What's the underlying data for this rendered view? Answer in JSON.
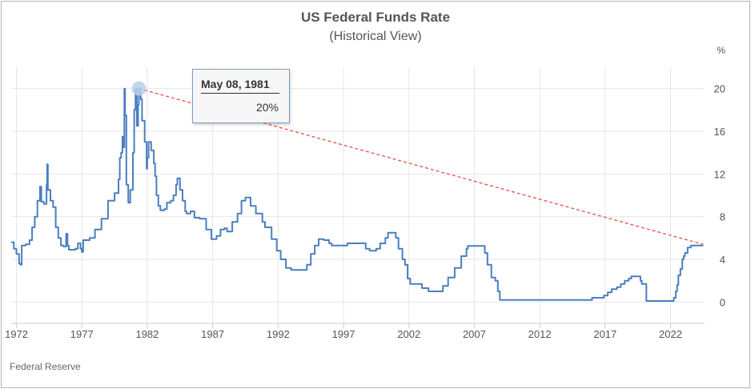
{
  "source": "Federal Reserve",
  "tooltip": {
    "date": "May 08, 1981",
    "value": "20%"
  },
  "colors": {
    "series": "#4a7fc1",
    "trend": "#e8413d",
    "grid": "#e6e6e6",
    "marker": "#b8cfe9"
  },
  "chart_data": {
    "type": "line",
    "title": "US Federal Funds Rate",
    "subtitle": "(Historical View)",
    "ylabel": "%",
    "xlim": [
      1971.6,
      2024.6
    ],
    "ylim": [
      -2,
      22
    ],
    "x_ticks": [
      1972,
      1977,
      1982,
      1987,
      1992,
      1997,
      2002,
      2007,
      2012,
      2017,
      2022
    ],
    "x_tick_labels": [
      "1972",
      "1977",
      "1982",
      "1987",
      "1992",
      "1997",
      "2002",
      "2007",
      "2012",
      "2017",
      "2022"
    ],
    "y_ticks": [
      0,
      4,
      8,
      12,
      16,
      20
    ],
    "y_tick_labels": [
      "0",
      "4",
      "8",
      "12",
      "16",
      "20"
    ],
    "grid": true,
    "series": [
      {
        "values": [
          [
            1971.6,
            5.6
          ],
          [
            1971.8,
            5.0
          ],
          [
            1972.0,
            4.5
          ],
          [
            1972.2,
            3.6
          ],
          [
            1972.3,
            3.5
          ],
          [
            1972.4,
            5.3
          ],
          [
            1972.7,
            5.4
          ],
          [
            1973.0,
            5.8
          ],
          [
            1973.2,
            7.0
          ],
          [
            1973.4,
            8.0
          ],
          [
            1973.6,
            9.5
          ],
          [
            1973.8,
            10.8
          ],
          [
            1973.9,
            9.4
          ],
          [
            1974.1,
            9.2
          ],
          [
            1974.3,
            11.0
          ],
          [
            1974.35,
            12.9
          ],
          [
            1974.4,
            10.5
          ],
          [
            1974.6,
            9.5
          ],
          [
            1974.8,
            8.9
          ],
          [
            1975.0,
            7.0
          ],
          [
            1975.2,
            6.0
          ],
          [
            1975.4,
            5.3
          ],
          [
            1975.6,
            5.2
          ],
          [
            1975.8,
            6.4
          ],
          [
            1975.9,
            5.3
          ],
          [
            1976.0,
            4.9
          ],
          [
            1976.5,
            5.0
          ],
          [
            1976.7,
            5.5
          ],
          [
            1976.9,
            5.0
          ],
          [
            1977.0,
            4.7
          ],
          [
            1977.1,
            5.8
          ],
          [
            1977.6,
            6.0
          ],
          [
            1978.0,
            6.8
          ],
          [
            1978.5,
            7.8
          ],
          [
            1979.0,
            9.5
          ],
          [
            1979.5,
            10.2
          ],
          [
            1979.8,
            11.5
          ],
          [
            1979.9,
            13.5
          ],
          [
            1980.0,
            14.0
          ],
          [
            1980.1,
            15.5
          ],
          [
            1980.2,
            14.5
          ],
          [
            1980.25,
            20.0
          ],
          [
            1980.3,
            17.5
          ],
          [
            1980.4,
            11.0
          ],
          [
            1980.55,
            9.3
          ],
          [
            1980.7,
            10.5
          ],
          [
            1980.9,
            14.0
          ],
          [
            1981.0,
            18.0
          ],
          [
            1981.1,
            20.0
          ],
          [
            1981.2,
            16.5
          ],
          [
            1981.3,
            18.5
          ],
          [
            1981.36,
            20.0
          ],
          [
            1981.5,
            19.0
          ],
          [
            1981.6,
            17.0
          ],
          [
            1981.8,
            15.0
          ],
          [
            1981.95,
            12.5
          ],
          [
            1982.0,
            13.5
          ],
          [
            1982.1,
            15.0
          ],
          [
            1982.3,
            14.2
          ],
          [
            1982.5,
            13.0
          ],
          [
            1982.6,
            11.8
          ],
          [
            1982.7,
            10.0
          ],
          [
            1982.85,
            9.0
          ],
          [
            1983.0,
            8.6
          ],
          [
            1983.3,
            8.7
          ],
          [
            1983.5,
            9.3
          ],
          [
            1983.8,
            9.5
          ],
          [
            1984.0,
            10.0
          ],
          [
            1984.2,
            11.0
          ],
          [
            1984.3,
            11.6
          ],
          [
            1984.5,
            10.5
          ],
          [
            1984.7,
            9.5
          ],
          [
            1984.9,
            8.5
          ],
          [
            1985.0,
            8.3
          ],
          [
            1985.3,
            8.5
          ],
          [
            1985.6,
            7.9
          ],
          [
            1986.0,
            7.8
          ],
          [
            1986.5,
            6.8
          ],
          [
            1986.9,
            5.9
          ],
          [
            1987.3,
            6.2
          ],
          [
            1987.6,
            6.8
          ],
          [
            1987.9,
            6.9
          ],
          [
            1988.1,
            6.6
          ],
          [
            1988.5,
            7.5
          ],
          [
            1988.9,
            8.3
          ],
          [
            1989.2,
            9.5
          ],
          [
            1989.5,
            9.8
          ],
          [
            1989.9,
            9.0
          ],
          [
            1990.3,
            8.3
          ],
          [
            1990.8,
            7.5
          ],
          [
            1991.0,
            7.0
          ],
          [
            1991.5,
            5.9
          ],
          [
            1991.9,
            4.8
          ],
          [
            1992.2,
            4.0
          ],
          [
            1992.6,
            3.2
          ],
          [
            1993.0,
            3.0
          ],
          [
            1993.9,
            3.0
          ],
          [
            1994.2,
            3.5
          ],
          [
            1994.5,
            4.5
          ],
          [
            1994.8,
            5.3
          ],
          [
            1995.1,
            5.9
          ],
          [
            1995.5,
            5.8
          ],
          [
            1995.9,
            5.5
          ],
          [
            1996.1,
            5.3
          ],
          [
            1997.2,
            5.3
          ],
          [
            1997.3,
            5.5
          ],
          [
            1998.3,
            5.5
          ],
          [
            1998.7,
            5.0
          ],
          [
            1999.0,
            4.8
          ],
          [
            1999.5,
            5.0
          ],
          [
            1999.8,
            5.5
          ],
          [
            2000.2,
            6.0
          ],
          [
            2000.4,
            6.5
          ],
          [
            2000.9,
            6.5
          ],
          [
            2001.0,
            6.0
          ],
          [
            2001.2,
            5.0
          ],
          [
            2001.5,
            4.0
          ],
          [
            2001.7,
            3.5
          ],
          [
            2001.9,
            2.2
          ],
          [
            2002.1,
            1.7
          ],
          [
            2002.8,
            1.7
          ],
          [
            2003.0,
            1.3
          ],
          [
            2003.5,
            1.0
          ],
          [
            2004.3,
            1.0
          ],
          [
            2004.6,
            1.5
          ],
          [
            2005.0,
            2.3
          ],
          [
            2005.5,
            3.2
          ],
          [
            2006.0,
            4.3
          ],
          [
            2006.4,
            5.0
          ],
          [
            2006.5,
            5.25
          ],
          [
            2007.6,
            5.25
          ],
          [
            2007.8,
            4.6
          ],
          [
            2008.0,
            3.5
          ],
          [
            2008.3,
            2.3
          ],
          [
            2008.6,
            2.0
          ],
          [
            2008.8,
            1.0
          ],
          [
            2008.95,
            0.2
          ],
          [
            2015.9,
            0.2
          ],
          [
            2016.0,
            0.4
          ],
          [
            2016.9,
            0.6
          ],
          [
            2017.2,
            0.9
          ],
          [
            2017.5,
            1.2
          ],
          [
            2017.9,
            1.4
          ],
          [
            2018.2,
            1.7
          ],
          [
            2018.5,
            2.0
          ],
          [
            2018.8,
            2.2
          ],
          [
            2019.0,
            2.4
          ],
          [
            2019.5,
            2.4
          ],
          [
            2019.7,
            2.0
          ],
          [
            2019.8,
            1.7
          ],
          [
            2020.15,
            0.1
          ],
          [
            2022.1,
            0.1
          ],
          [
            2022.25,
            0.4
          ],
          [
            2022.4,
            1.0
          ],
          [
            2022.5,
            1.6
          ],
          [
            2022.6,
            2.5
          ],
          [
            2022.75,
            3.1
          ],
          [
            2022.9,
            4.0
          ],
          [
            2023.0,
            4.3
          ],
          [
            2023.1,
            4.6
          ],
          [
            2023.3,
            5.1
          ],
          [
            2023.55,
            5.3
          ],
          [
            2024.5,
            5.3
          ]
        ]
      }
    ],
    "trend_line": [
      [
        1981.36,
        20.0
      ],
      [
        2024.5,
        5.4
      ]
    ],
    "highlight_point": [
      1981.36,
      20.0
    ]
  }
}
